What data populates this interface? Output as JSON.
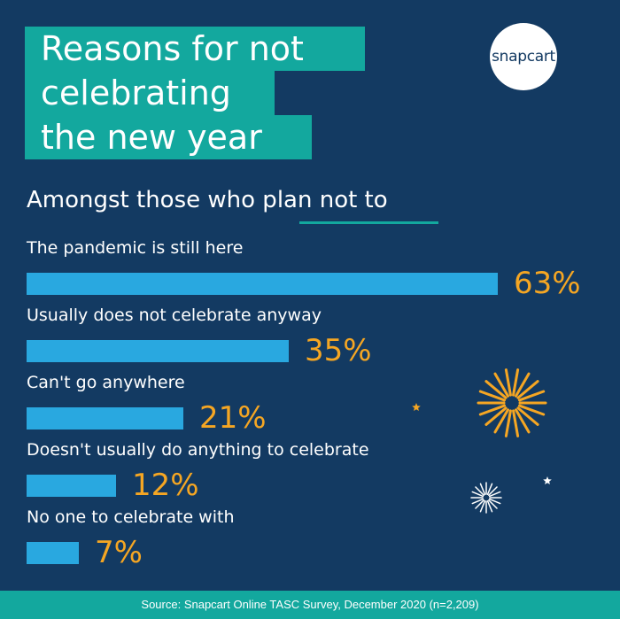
{
  "header": {
    "title_lines": [
      "Reasons for not",
      "celebrating",
      "the new year"
    ],
    "subtitle": "Amongst those who plan not to",
    "logo_text": "snapcart"
  },
  "chart_data": {
    "type": "bar",
    "orientation": "horizontal",
    "categories": [
      "The pandemic is still here",
      "Usually does not celebrate anyway",
      "Can't go anywhere",
      "Doesn't usually do anything to celebrate",
      "No one to celebrate with"
    ],
    "values": [
      63,
      35,
      21,
      12,
      7
    ],
    "value_labels": [
      "63%",
      "35%",
      "21%",
      "12%",
      "7%"
    ],
    "unit": "%",
    "grid": false,
    "bar_color": "#29a8e0",
    "value_color": "#f5a623"
  },
  "footer": {
    "source": "Source: Snapcart Online TASC Survey, December 2020 (n=2,209)"
  },
  "colors": {
    "background": "#133a62",
    "accent": "#13a89e",
    "bar": "#29a8e0",
    "value": "#f5a623"
  },
  "icons": [
    "firework-burst-icon",
    "small-firework-icon",
    "star-icon"
  ]
}
